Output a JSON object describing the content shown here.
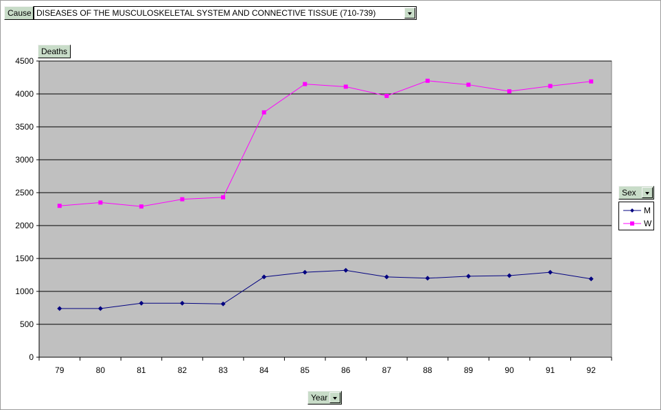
{
  "filters": {
    "cause_button_label": "Cause",
    "cause_value": "DISEASES OF THE MUSCULOSKELETAL SYSTEM AND CONNECTIVE TISSUE (710-739)"
  },
  "data_field_label": "Deaths",
  "sex_button_label": "Sex",
  "year_button_label": "Year",
  "colors": {
    "plot_background": "#c0c0c0",
    "series_M": "#000080",
    "series_W": "#ff00ff",
    "field_button": "#c8dcc8"
  },
  "icons": {
    "dropdown": "chevron-down-icon"
  },
  "chart_data": {
    "type": "line",
    "title": "",
    "xlabel": "Year",
    "ylabel": "Deaths",
    "categories": [
      "79",
      "80",
      "81",
      "82",
      "83",
      "84",
      "85",
      "86",
      "87",
      "88",
      "89",
      "90",
      "91",
      "92"
    ],
    "ylim": [
      0,
      4500
    ],
    "yticks": [
      0,
      500,
      1000,
      1500,
      2000,
      2500,
      3000,
      3500,
      4000,
      4500
    ],
    "grid": true,
    "legend_position": "right",
    "series": [
      {
        "name": "M",
        "marker": "diamond",
        "values": [
          740,
          740,
          820,
          820,
          810,
          1220,
          1290,
          1320,
          1220,
          1200,
          1230,
          1240,
          1290,
          1190
        ]
      },
      {
        "name": "W",
        "marker": "square",
        "values": [
          2300,
          2350,
          2290,
          2400,
          2430,
          3720,
          4150,
          4110,
          3970,
          4200,
          4140,
          4040,
          4120,
          4190
        ]
      }
    ]
  }
}
